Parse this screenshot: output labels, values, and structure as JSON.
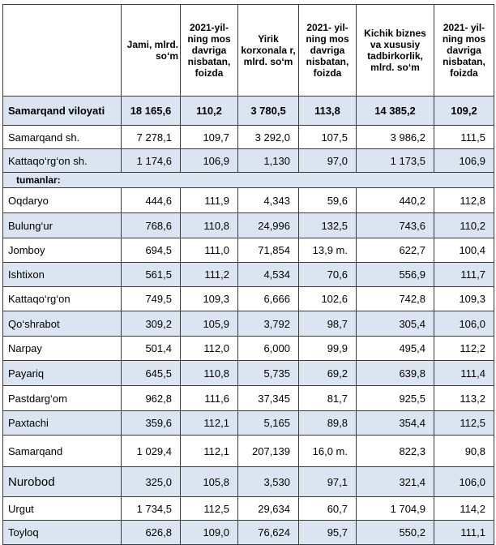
{
  "headers": [
    "",
    "Jami, mlrd. so‘m",
    "2021-yil-ning mos davriga nisbatan, foizda",
    "Yirik korxonala r, mlrd. so‘m",
    "2021- yil-ning mos davriga nisbatan, foizda",
    "Kichik biznes va xususiy tadbirkorlik, mlrd. so‘m",
    "2021- yil-ning mos davriga nisbatan, foizda"
  ],
  "total": {
    "name": "Samarqand viloyati",
    "cells": [
      "18 165,6",
      "110,2",
      "3 780,5",
      "113,8",
      "14 385,2",
      "109,2"
    ]
  },
  "cities": [
    {
      "name": "Samarqand sh.",
      "cells": [
        "7 278,1",
        "109,7",
        "3 292,0",
        "107,5",
        "3 986,2",
        "111,5"
      ]
    },
    {
      "name": "Kattaqo‘rg‘on  sh.",
      "cells": [
        "1 174,6",
        "106,9",
        "1,130",
        "97,0",
        "1 173,5",
        "106,9"
      ]
    }
  ],
  "section_label": "tumanlar:",
  "districts": [
    {
      "name": "Oqdaryo",
      "cells": [
        "444,6",
        "111,9",
        "4,343",
        "59,6",
        "440,2",
        "112,8"
      ]
    },
    {
      "name": "Bulung‘ur",
      "cells": [
        "768,6",
        "110,8",
        "24,996",
        "132,5",
        "743,6",
        "110,2"
      ]
    },
    {
      "name": "Jomboy",
      "cells": [
        "694,5",
        "111,0",
        "71,854",
        "13,9 m.",
        "622,7",
        "100,4"
      ]
    },
    {
      "name": "Ishtixon",
      "cells": [
        "561,5",
        "111,2",
        "4,534",
        "70,6",
        "556,9",
        "111,7"
      ]
    },
    {
      "name": "Kattaqo‘rg‘on",
      "cells": [
        "749,5",
        "109,3",
        "6,666",
        "102,6",
        "742,8",
        "109,3"
      ]
    },
    {
      "name": "Qo‘shrabot",
      "cells": [
        "309,2",
        "105,9",
        "3,792",
        "98,7",
        "305,4",
        "106,0"
      ]
    },
    {
      "name": "Narpay",
      "cells": [
        "501,4",
        "112,0",
        "6,000",
        "99,9",
        "495,4",
        "112,2"
      ]
    },
    {
      "name": "Payariq",
      "cells": [
        "645,5",
        "110,8",
        "5,735",
        "69,2",
        "639,8",
        "111,4"
      ]
    },
    {
      "name": "Pastdarg‘om",
      "cells": [
        "962,8",
        "111,6",
        "37,345",
        "81,7",
        "925,5",
        "113,2"
      ]
    },
    {
      "name": "Paxtachi",
      "cells": [
        "359,6",
        "112,1",
        "5,165",
        "89,8",
        "354,4",
        "112,5"
      ]
    },
    {
      "name": "Samarqand",
      "cells": [
        "1 029,4",
        "112,1",
        "207,139",
        "16,0 m.",
        "822,3",
        "90,8"
      ]
    },
    {
      "name": "Nurobod",
      "cells": [
        "325,0",
        "105,8",
        "3,530",
        "97,1",
        "321,4",
        "106,0"
      ]
    },
    {
      "name": "Urgut",
      "cells": [
        "1 734,5",
        "112,5",
        "29,634",
        "60,7",
        "1 704,9",
        "114,2"
      ]
    },
    {
      "name": "Toyloq",
      "cells": [
        "626,8",
        "109,0",
        "76,624",
        "95,7",
        "550,2",
        "111,1"
      ]
    }
  ]
}
